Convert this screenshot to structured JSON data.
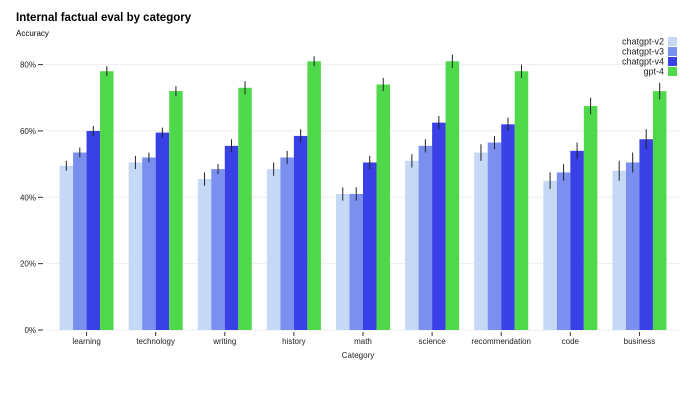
{
  "chart_data": {
    "type": "bar",
    "title": "Internal factual eval by category",
    "subtitle": "Accuracy",
    "xlabel": "Category",
    "ylabel": "",
    "ylim": [
      0,
      85
    ],
    "yticks": [
      0,
      20,
      40,
      60,
      80
    ],
    "ytick_labels": [
      "0%",
      "20%",
      "40%",
      "60%",
      "80%"
    ],
    "legend_position": "top-right",
    "categories": [
      "learning",
      "technology",
      "writing",
      "history",
      "math",
      "science",
      "recommendation",
      "code",
      "business"
    ],
    "series": [
      {
        "name": "chatgpt-v2",
        "color": "#c5d8f5",
        "values": [
          49.5,
          50.5,
          45.5,
          48.5,
          41,
          51,
          53.5,
          45,
          48
        ],
        "errors": [
          1.5,
          2,
          2,
          2,
          2,
          2,
          2.5,
          2.5,
          3
        ]
      },
      {
        "name": "chatgpt-v3",
        "color": "#7b8fef",
        "values": [
          53.5,
          52,
          48.5,
          52,
          41,
          55.5,
          56.5,
          47.5,
          50.5
        ],
        "errors": [
          1.5,
          1.5,
          1.5,
          2,
          2,
          2,
          2,
          2.5,
          3
        ]
      },
      {
        "name": "chatgpt-v4",
        "color": "#3940e6",
        "values": [
          60,
          59.5,
          55.5,
          58.5,
          50.5,
          62.5,
          62,
          54,
          57.5
        ],
        "errors": [
          1.5,
          1.5,
          2,
          2,
          2,
          2,
          2,
          2.5,
          3
        ]
      },
      {
        "name": "gpt-4",
        "color": "#4fd94a",
        "values": [
          78,
          72,
          73,
          81,
          74,
          81,
          78,
          67.5,
          72
        ],
        "errors": [
          1.5,
          1.5,
          2,
          1.5,
          2,
          2,
          2,
          2.5,
          2.5
        ]
      }
    ]
  }
}
